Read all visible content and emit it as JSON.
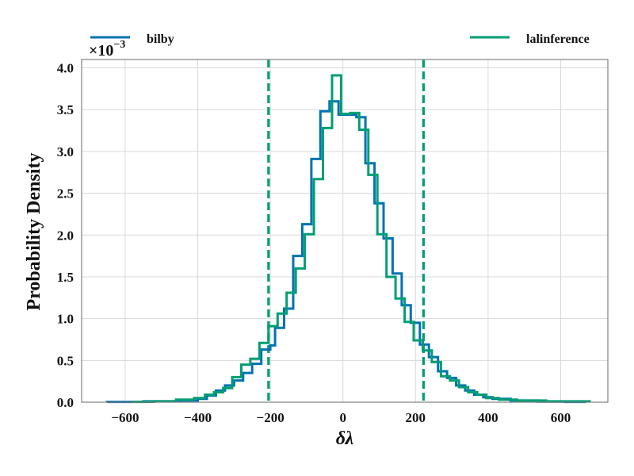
{
  "chart_data": {
    "type": "line",
    "xlabel": "δλ",
    "ylabel": "Probability Density",
    "y_scale_label": "×10",
    "y_scale_exponent": "−3",
    "xlim": [
      -720,
      730
    ],
    "ylim": [
      0,
      4.1
    ],
    "xticks": [
      -600,
      -400,
      -200,
      0,
      200,
      400,
      600
    ],
    "xtick_labels": [
      "−600",
      "−400",
      "−200",
      "0",
      "200",
      "400",
      "600"
    ],
    "yticks": [
      0.0,
      0.5,
      1.0,
      1.5,
      2.0,
      2.5,
      3.0,
      3.5,
      4.0
    ],
    "ytick_labels": [
      "0.0",
      "0.5",
      "1.0",
      "1.5",
      "2.0",
      "2.5",
      "3.0",
      "3.5",
      "4.0"
    ],
    "grid": true,
    "legend_placement": "top, above plot",
    "vlines": [
      {
        "x": -205,
        "color": "#009E73",
        "style": "dashed"
      },
      {
        "x": 222,
        "color": "#009E73",
        "style": "dashed"
      }
    ],
    "series": [
      {
        "name": "bilby",
        "color": "#0072B2",
        "bin_edges": [
          -650,
          -550,
          -450,
          -400,
          -375,
          -350,
          -325,
          -300,
          -275,
          -250,
          -225,
          -200,
          -187,
          -162,
          -137,
          -112,
          -87,
          -62,
          -37,
          -12,
          12,
          37,
          62,
          87,
          112,
          137,
          162,
          187,
          212,
          237,
          262,
          287,
          312,
          337,
          362,
          387,
          412,
          462,
          537,
          612,
          670
        ],
        "values": [
          0.004,
          0.01,
          0.02,
          0.04,
          0.08,
          0.14,
          0.2,
          0.26,
          0.35,
          0.46,
          0.63,
          0.68,
          0.89,
          1.12,
          1.75,
          2.13,
          2.91,
          3.48,
          3.6,
          3.44,
          3.44,
          3.41,
          2.86,
          2.38,
          1.96,
          1.54,
          1.16,
          0.95,
          0.69,
          0.54,
          0.37,
          0.29,
          0.2,
          0.14,
          0.09,
          0.06,
          0.04,
          0.02,
          0.008,
          0.004
        ]
      },
      {
        "name": "lalinference",
        "color": "#009E73",
        "bin_edges": [
          -580,
          -520,
          -460,
          -410,
          -380,
          -355,
          -330,
          -305,
          -280,
          -255,
          -230,
          -205,
          -180,
          -155,
          -130,
          -105,
          -80,
          -55,
          -30,
          -5,
          20,
          45,
          70,
          95,
          120,
          145,
          170,
          195,
          220,
          245,
          270,
          295,
          320,
          345,
          370,
          395,
          430,
          480,
          560,
          630,
          680
        ],
        "values": [
          0.005,
          0.01,
          0.03,
          0.05,
          0.09,
          0.12,
          0.17,
          0.3,
          0.45,
          0.52,
          0.71,
          0.91,
          1.06,
          1.31,
          1.6,
          2.01,
          2.67,
          3.28,
          3.91,
          3.45,
          3.46,
          3.26,
          2.72,
          2.01,
          1.5,
          1.24,
          0.96,
          0.74,
          0.62,
          0.48,
          0.31,
          0.26,
          0.18,
          0.12,
          0.09,
          0.05,
          0.03,
          0.02,
          0.01,
          0.01
        ]
      }
    ]
  }
}
